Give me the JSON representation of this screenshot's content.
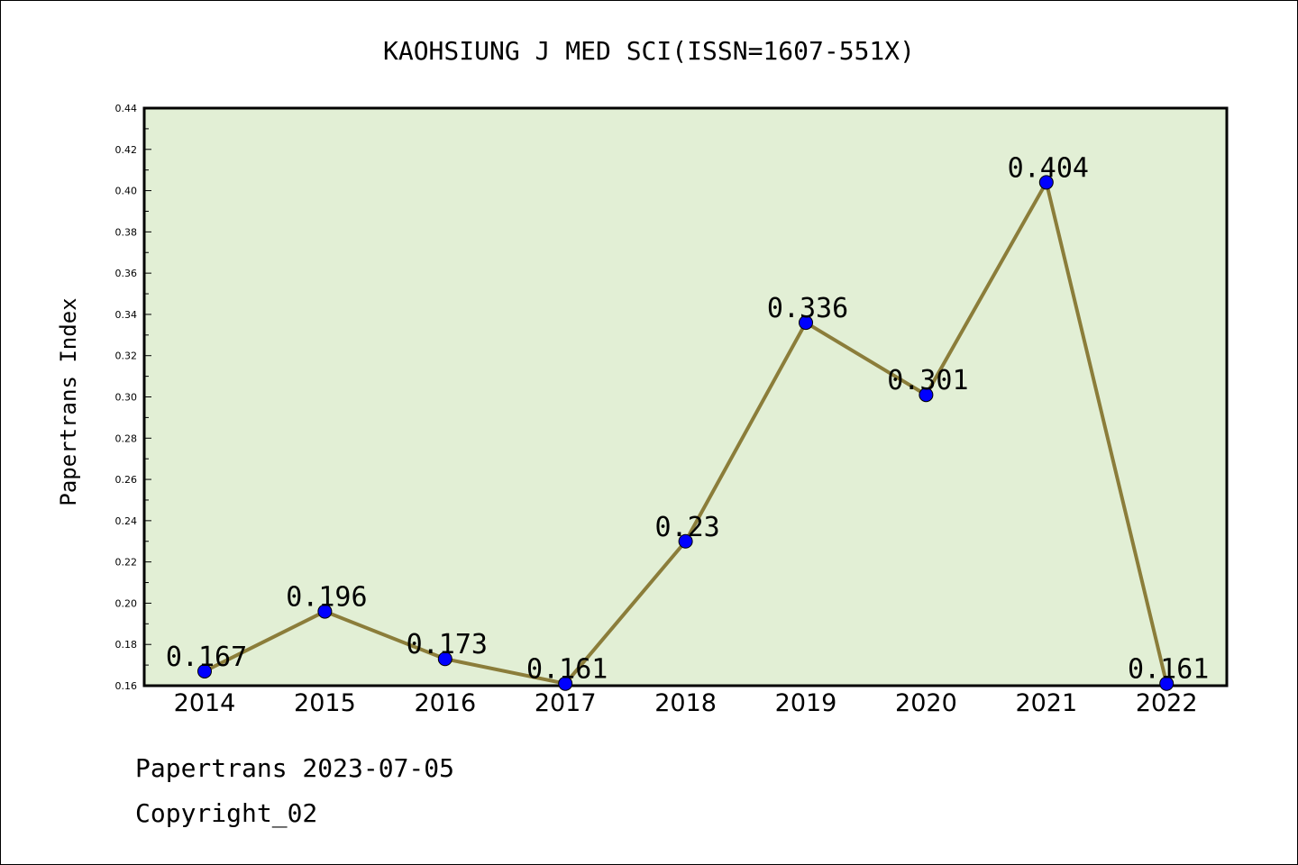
{
  "chart_data": {
    "type": "line",
    "title": "KAOHSIUNG J MED SCI(ISSN=1607-551X)",
    "xlabel": "",
    "ylabel": "Papertrans Index",
    "categories": [
      "2014",
      "2015",
      "2016",
      "2017",
      "2018",
      "2019",
      "2020",
      "2021",
      "2022"
    ],
    "series": [
      {
        "values": [
          0.167,
          0.196,
          0.173,
          0.161,
          0.23,
          0.336,
          0.301,
          0.404,
          0.161
        ],
        "data_labels": [
          "0.167",
          "0.196",
          "0.173",
          "0.161",
          "0.23",
          "0.336",
          "0.301",
          "0.404",
          "0.161"
        ]
      }
    ],
    "ylim": [
      0.16,
      0.44
    ],
    "yticks": [
      "0.16",
      "0.18",
      "0.20",
      "0.22",
      "0.24",
      "0.26",
      "0.28",
      "0.30",
      "0.32",
      "0.34",
      "0.36",
      "0.38",
      "0.40",
      "0.42",
      "0.44"
    ],
    "grid": false,
    "colors": {
      "plot_background": "#e2efd5",
      "line": "#8b7d3a",
      "marker": "#0000ff"
    }
  },
  "footer": {
    "date_line": "Papertrans 2023-07-05",
    "copyright_line": "Copyright_02"
  }
}
